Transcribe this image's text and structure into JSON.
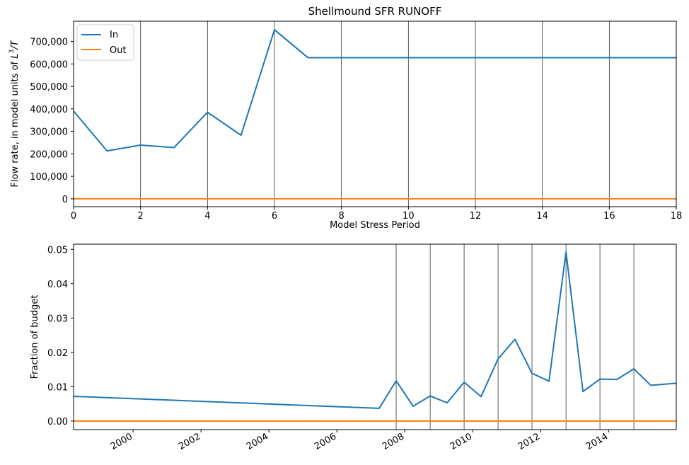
{
  "chart_data": [
    {
      "type": "line",
      "title": "Shellmound SFR RUNOFF",
      "xlabel": "Model Stress Period",
      "ylabel": "Flow rate, in model units of L³/T",
      "ylabel_prefix": "Flow rate, in model units of ",
      "ylabel_L": "L",
      "ylabel_exp": "3",
      "ylabel_T": "/T",
      "xlim": [
        0,
        18
      ],
      "ylim": [
        -35000,
        790000
      ],
      "x_tick_values": [
        0,
        2,
        4,
        6,
        8,
        10,
        12,
        14,
        16,
        18
      ],
      "x_tick_labels": [
        "0",
        "2",
        "4",
        "6",
        "8",
        "10",
        "12",
        "14",
        "16",
        "18"
      ],
      "y_tick_values": [
        0,
        100000,
        200000,
        300000,
        400000,
        500000,
        600000,
        700000
      ],
      "y_tick_labels": [
        "0",
        "100,000",
        "200,000",
        "300,000",
        "400,000",
        "500,000",
        "600,000",
        "700,000"
      ],
      "vlines": [
        2,
        4,
        6,
        8,
        10,
        12,
        14,
        16
      ],
      "grid": false,
      "legend_position": "top-left",
      "series": [
        {
          "name": "In",
          "color": "#1f77b4",
          "points": [
            [
              0,
              390000
            ],
            [
              1,
              213000
            ],
            [
              2,
              239000
            ],
            [
              3,
              228000
            ],
            [
              4,
              385000
            ],
            [
              5,
              283000
            ],
            [
              6,
              752000
            ],
            [
              7,
              628000
            ],
            [
              8,
              628000
            ],
            [
              9,
              628000
            ],
            [
              10,
              628000
            ],
            [
              11,
              628000
            ],
            [
              12,
              628000
            ],
            [
              13,
              628000
            ],
            [
              14,
              628000
            ],
            [
              15,
              628000
            ],
            [
              16,
              628000
            ],
            [
              17,
              628000
            ],
            [
              18,
              628000
            ]
          ]
        },
        {
          "name": "Out",
          "color": "#ff7f0e",
          "points": [
            [
              0,
              0
            ],
            [
              18,
              0
            ]
          ]
        }
      ]
    },
    {
      "type": "line",
      "xlabel": "",
      "ylabel": "Fraction of budget",
      "xlim": [
        "1998-04-01",
        "2015-12-31"
      ],
      "ylim": [
        -0.0025,
        0.0515
      ],
      "x_tick_values": [
        "2000-01-01",
        "2002-01-01",
        "2004-01-01",
        "2006-01-01",
        "2008-01-01",
        "2010-01-01",
        "2012-01-01",
        "2014-01-01"
      ],
      "x_tick_labels": [
        "2000",
        "2002",
        "2004",
        "2006",
        "2008",
        "2010",
        "2012",
        "2014"
      ],
      "y_tick_values": [
        0,
        0.01,
        0.02,
        0.03,
        0.04,
        0.05
      ],
      "y_tick_labels": [
        "0.00",
        "0.01",
        "0.02",
        "0.03",
        "0.04",
        "0.05"
      ],
      "vlines": [
        "2007-10-01",
        "2008-10-01",
        "2009-10-01",
        "2010-10-01",
        "2011-10-01",
        "2012-10-01",
        "2013-10-01",
        "2014-10-01"
      ],
      "grid": false,
      "series": [
        {
          "name": "In",
          "color": "#1f77b4",
          "points": [
            [
              "1998-04-01",
              0.0072
            ],
            [
              "2007-04-01",
              0.0037
            ],
            [
              "2007-10-01",
              0.0117
            ],
            [
              "2008-04-01",
              0.0043
            ],
            [
              "2008-10-01",
              0.0073
            ],
            [
              "2009-04-01",
              0.0053
            ],
            [
              "2009-10-01",
              0.0113
            ],
            [
              "2010-04-01",
              0.0071
            ],
            [
              "2010-10-01",
              0.0181
            ],
            [
              "2011-04-01",
              0.0238
            ],
            [
              "2011-10-01",
              0.0139
            ],
            [
              "2012-04-01",
              0.0116
            ],
            [
              "2012-10-01",
              0.0492
            ],
            [
              "2013-04-01",
              0.0086
            ],
            [
              "2013-10-01",
              0.0122
            ],
            [
              "2014-04-01",
              0.0121
            ],
            [
              "2014-10-01",
              0.0152
            ],
            [
              "2015-04-01",
              0.0104
            ],
            [
              "2015-12-31",
              0.011
            ]
          ]
        },
        {
          "name": "Out",
          "color": "#ff7f0e",
          "points": [
            [
              "1998-04-01",
              0
            ],
            [
              "2015-12-31",
              0
            ]
          ]
        }
      ]
    }
  ]
}
